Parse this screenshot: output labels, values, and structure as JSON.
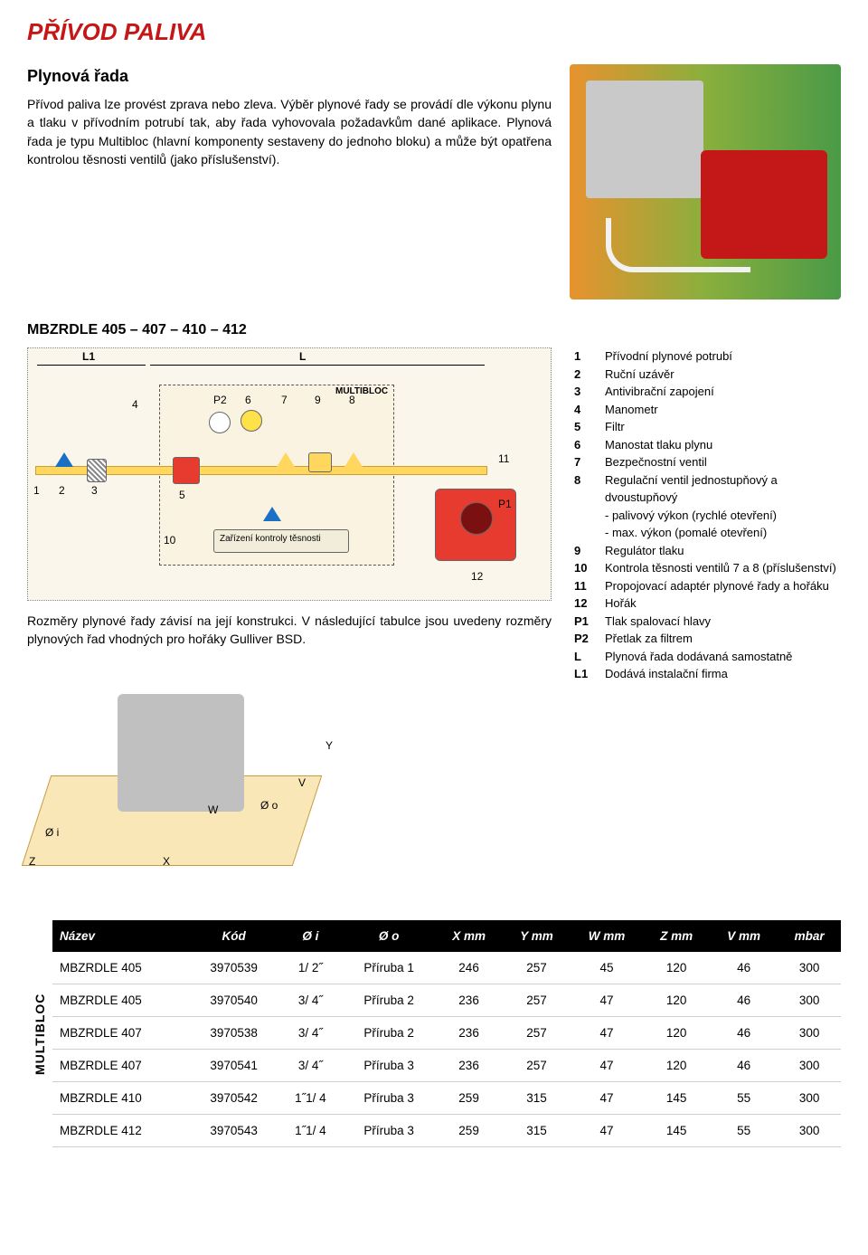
{
  "colors": {
    "title": "#c41818",
    "text": "#000000",
    "header_bg": "#000000",
    "header_fg": "#ffffff",
    "row_border": "#cfcfcf",
    "schematic_bg": "#fbf6eb",
    "pipe": "#ffd75e",
    "valve_blue": "#1b6fc4",
    "burner_red": "#c41818",
    "base_sand": "#f9e7b8"
  },
  "title": "PŘÍVOD PALIVA",
  "subtitle": "Plynová řada",
  "intro_text": "Přívod paliva lze provést zprava nebo zleva. Výběr plynové řady se provádí dle výkonu plynu a tlaku v přívodním potrubí tak, aby řada vyhovovala požadavkům dané aplikace. Plynová řada je typu Multibloc (hlavní komponenty sestaveny do jednoho bloku) a může být opatřena kontrolou těsnosti ventilů (jako příslušenství).",
  "section_heading": "MBZRDLE 405 – 407 – 410 – 412",
  "schematic": {
    "top_labels": {
      "L1": "L1",
      "L": "L"
    },
    "multibloc_label": "MULTIBLOC",
    "leak_test_label": "Zařízení kontroly těsnosti",
    "node_labels": [
      "1",
      "2",
      "3",
      "4",
      "5",
      "6",
      "7",
      "8",
      "9",
      "10",
      "11",
      "12",
      "P1",
      "P2"
    ]
  },
  "schematic_caption": "Rozměry plynové řady závisí na její konstrukci. V následující tabulce jsou uvedeny rozměry plynových řad vhodných pro hořáky Gulliver BSD.",
  "legend": [
    {
      "k": "1",
      "v": "Přívodní plynové potrubí"
    },
    {
      "k": "2",
      "v": "Ruční uzávěr"
    },
    {
      "k": "3",
      "v": "Antivibrační zapojení"
    },
    {
      "k": "4",
      "v": "Manometr"
    },
    {
      "k": "5",
      "v": "Filtr"
    },
    {
      "k": "6",
      "v": "Manostat tlaku plynu"
    },
    {
      "k": "7",
      "v": "Bezpečnostní ventil"
    },
    {
      "k": "8",
      "v": "Regulační ventil jednostupňový a dvoustupňový\n- palivový výkon (rychlé otevření)\n- max. výkon (pomalé otevření)"
    },
    {
      "k": "9",
      "v": "Regulátor tlaku"
    },
    {
      "k": "10",
      "v": "Kontrola těsnosti ventilů 7 a 8 (příslušenství)"
    },
    {
      "k": "11",
      "v": "Propojovací adaptér plynové řady a hořáku"
    },
    {
      "k": "12",
      "v": "Hořák"
    },
    {
      "k": "P1",
      "v": "Tlak spalovací hlavy"
    },
    {
      "k": "P2",
      "v": "Přetlak za filtrem"
    },
    {
      "k": "L",
      "v": "Plynová řada dodávaná samostatně"
    },
    {
      "k": "L1",
      "v": "Dodává instalační firma"
    }
  ],
  "dim_labels": {
    "Oi": "Ø i",
    "Oo": "Ø o",
    "X": "X",
    "Y": "Y",
    "W": "W",
    "Z": "Z",
    "V": "V"
  },
  "table": {
    "vertical_label": "MULTIBLOC",
    "columns": [
      "Název",
      "Kód",
      "Ø i",
      "Ø o",
      "X mm",
      "Y mm",
      "W mm",
      "Z mm",
      "V mm",
      "mbar"
    ],
    "rows": [
      [
        "MBZRDLE 405",
        "3970539",
        "1/ 2˝",
        "Příruba 1",
        "246",
        "257",
        "45",
        "120",
        "46",
        "300"
      ],
      [
        "MBZRDLE 405",
        "3970540",
        "3/ 4˝",
        "Příruba 2",
        "236",
        "257",
        "47",
        "120",
        "46",
        "300"
      ],
      [
        "MBZRDLE 407",
        "3970538",
        "3/ 4˝",
        "Příruba 2",
        "236",
        "257",
        "47",
        "120",
        "46",
        "300"
      ],
      [
        "MBZRDLE 407",
        "3970541",
        "3/ 4˝",
        "Příruba 3",
        "236",
        "257",
        "47",
        "120",
        "46",
        "300"
      ],
      [
        "MBZRDLE 410",
        "3970542",
        "1˝1/ 4",
        "Příruba 3",
        "259",
        "315",
        "47",
        "145",
        "55",
        "300"
      ],
      [
        "MBZRDLE 412",
        "3970543",
        "1˝1/ 4",
        "Příruba 3",
        "259",
        "315",
        "47",
        "145",
        "55",
        "300"
      ]
    ]
  }
}
